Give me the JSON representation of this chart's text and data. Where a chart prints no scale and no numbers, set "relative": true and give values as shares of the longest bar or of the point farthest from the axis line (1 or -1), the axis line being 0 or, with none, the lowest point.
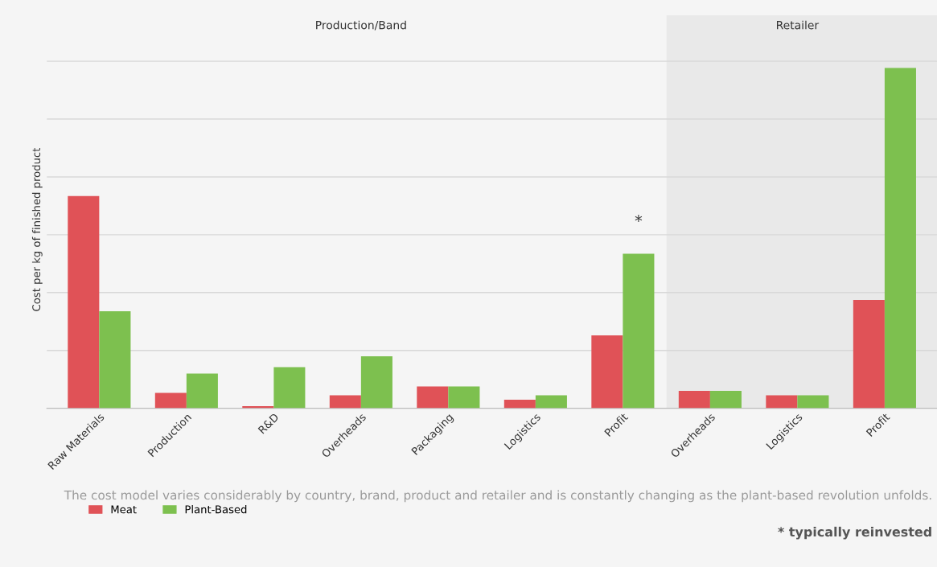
{
  "chart_data": {
    "type": "bar",
    "relative": true,
    "ylabel": "Cost per kg of finished product",
    "categories": [
      "Raw Materials",
      "Production",
      "R&D",
      "Overheads",
      "Packaging",
      "Logistics",
      "Profit",
      "Overheads",
      "Logistics",
      "Profit"
    ],
    "series": [
      {
        "name": "Meat",
        "color": "#e05257",
        "values": [
          0.624,
          0.045,
          0.006,
          0.038,
          0.064,
          0.025,
          0.214,
          0.051,
          0.038,
          0.318
        ]
      },
      {
        "name": "Plant-Based",
        "color": "#7dc04f",
        "values": [
          0.285,
          0.102,
          0.121,
          0.153,
          0.064,
          0.038,
          0.454,
          0.051,
          0.038,
          1
        ]
      }
    ],
    "annotations": [
      "Production/Band",
      "Retailer",
      "*",
      "The cost model varies considerably by country, brand, product and retailer and is constantly changing as the plant-based revolution unfolds.",
      "* typically reinvested"
    ],
    "grid": "y",
    "legend": "bottom left"
  }
}
